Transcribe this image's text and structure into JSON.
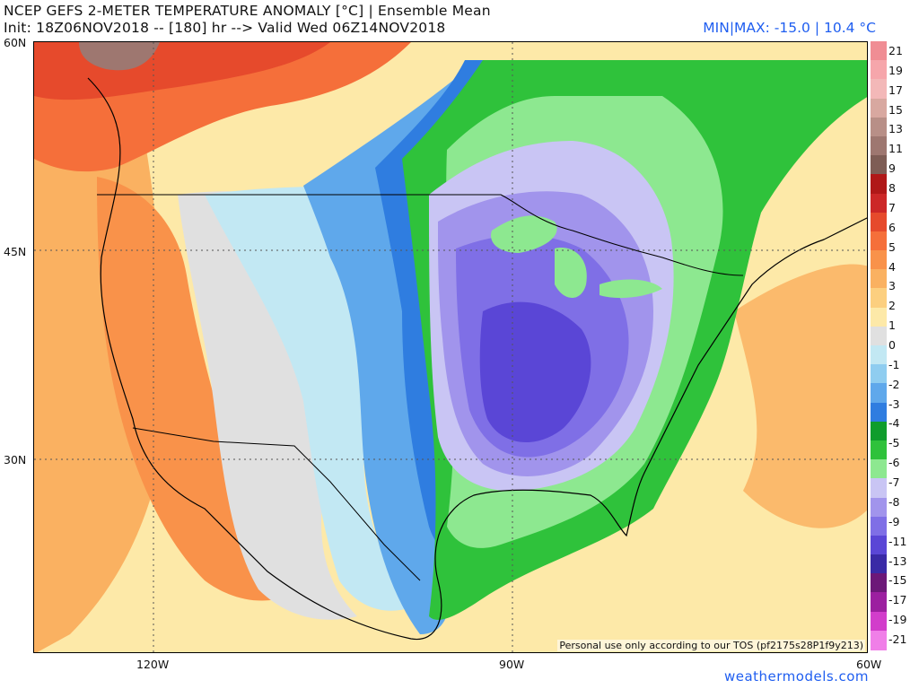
{
  "header": {
    "title_line1": "NCEP GEFS 2-METER TEMPERATURE ANOMALY [°C] | Ensemble Mean",
    "title_line2": "Init: 18Z06NOV2018 -- [180] hr --> Valid Wed 06Z14NOV2018",
    "minmax": "MIN|MAX: -15.0 | 10.4 °C"
  },
  "axes": {
    "lat_labels": [
      "60N",
      "45N",
      "30N"
    ],
    "lon_labels": [
      "120W",
      "90W",
      "60W"
    ]
  },
  "footer": {
    "tos_note": "Personal use only according to our TOS (pf2175s28P1f9y213)",
    "credit": "weathermodels.com"
  },
  "colorbar": {
    "labels": [
      "21",
      "19",
      "17",
      "15",
      "13",
      "11",
      "9",
      "8",
      "7",
      "6",
      "5",
      "4",
      "3",
      "2",
      "1",
      "0",
      "-1",
      "-2",
      "-3",
      "-4",
      "-5",
      "-6",
      "-7",
      "-8",
      "-9",
      "-11",
      "-13",
      "-15",
      "-17",
      "-19",
      "-21"
    ],
    "colors": [
      "#f08d94",
      "#f6a6ab",
      "#f3b8b8",
      "#d8a8a0",
      "#b88f87",
      "#9e7770",
      "#7e5d55",
      "#b01818",
      "#cc2727",
      "#e64a2c",
      "#f56f3a",
      "#f9924a",
      "#fab161",
      "#fccf7f",
      "#fde9a8",
      "#e0e0e0",
      "#c2e8f3",
      "#8fcdf0",
      "#5fa8eb",
      "#2f7de0",
      "#0f9d2c",
      "#2fc23b",
      "#8de890",
      "#c9c5f4",
      "#a194ec",
      "#7f6fe6",
      "#5a46d6",
      "#3a2aa6",
      "#6c1878",
      "#9c1fa0",
      "#d23dcb",
      "#f07fe8"
    ]
  },
  "map": {
    "colors": {
      "ocean_warm": "#fde9a8",
      "land_neutral": "#e0e0e0",
      "warm2": "#fab161",
      "warm3": "#f56f3a",
      "warm4": "#e64a2c",
      "brown": "#9e7770",
      "cool1": "#c2e8f3",
      "cool2": "#8fcdf0",
      "cool3": "#5fa8eb",
      "cool4": "#2f7de0",
      "green1": "#2fc23b",
      "green2": "#8de890",
      "purple1": "#c9c5f4",
      "purple2": "#a194ec",
      "purple3": "#7f6fe6",
      "purple4": "#5a46d6",
      "outline": "#000000"
    }
  }
}
